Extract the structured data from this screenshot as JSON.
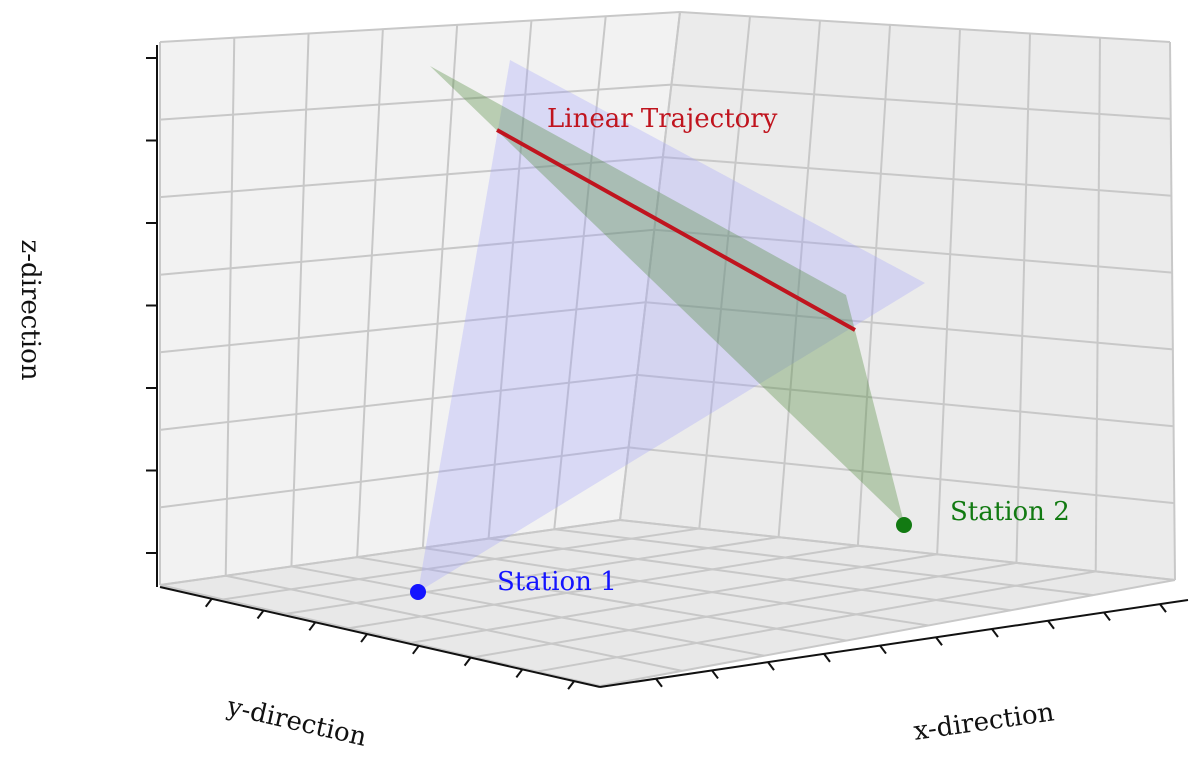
{
  "axes": {
    "x_label": "x-direction",
    "y_label": "y-direction",
    "z_label": "z-direction",
    "grid": true,
    "pane_color": "#f2f2f2",
    "grid_color": "#c8c8c8"
  },
  "labels": {
    "trajectory": "Linear Trajectory",
    "station1": "Station 1",
    "station2": "Station 2"
  },
  "colors": {
    "trajectory": "#c0141e",
    "station1": "#1414ff",
    "station2": "#127a12",
    "plane1": "#9999ff",
    "plane2": "#4f8a3c"
  }
}
